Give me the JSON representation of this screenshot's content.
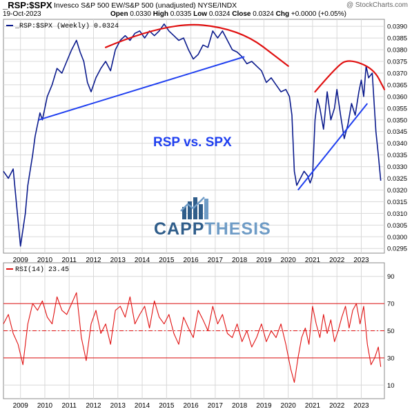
{
  "header": {
    "symbol": "_RSP:$SPX",
    "description": "Invesco S&P 500 EW/S&P 500 (unadjusted) NYSE/INDX",
    "watermark": "@ StockCharts.com",
    "date": "19-Oct-2023",
    "open_label": "Open",
    "open_value": "0.0330",
    "high_label": "High",
    "high_value": "0.0335",
    "low_label": "Low",
    "low_value": "0.0324",
    "close_label": "Close",
    "close_value": "0.0324",
    "chg_label": "Chg",
    "chg_value": "+0.0000 (+0.05%)"
  },
  "annotation": "RSP vs. SPX",
  "logo": {
    "part1": "CAPP",
    "part2": "THESIS"
  },
  "colors": {
    "price": "#0a1a8c",
    "trend": "#1f3ff0",
    "arc": "#e01010",
    "rsi": "#e01010",
    "grid": "#d8d8d8"
  },
  "chart_data": [
    {
      "type": "line",
      "legend": "_RSP:$SPX (Weekly) 0.0324",
      "x_ticks": [
        "2009",
        "2010",
        "2011",
        "2012",
        "2013",
        "2014",
        "2015",
        "2016",
        "2017",
        "2018",
        "2019",
        "2020",
        "2021",
        "2022",
        "2023"
      ],
      "y_ticks": [
        "0.0295",
        "0.0300",
        "0.0305",
        "0.0310",
        "0.0315",
        "0.0320",
        "0.0325",
        "0.0330",
        "0.0335",
        "0.0340",
        "0.0345",
        "0.0350",
        "0.0355",
        "0.0360",
        "0.0365",
        "0.0370",
        "0.0375",
        "0.0380",
        "0.0385",
        "0.0390"
      ],
      "ylim": [
        0.0293,
        0.0393
      ],
      "xlim": [
        2008.3,
        2023.95
      ],
      "series": [
        {
          "x": [
            2008.3,
            2008.5,
            2008.7,
            2008.8,
            2009.0,
            2009.1,
            2009.2,
            2009.3,
            2009.5,
            2009.6,
            2009.8,
            2009.9,
            2010.1,
            2010.3,
            2010.5,
            2010.7,
            2010.9,
            2011.1,
            2011.3,
            2011.45,
            2011.6,
            2011.75,
            2011.9,
            2012.1,
            2012.3,
            2012.5,
            2012.7,
            2012.9,
            2013.1,
            2013.3,
            2013.5,
            2013.7,
            2013.9,
            2014.1,
            2014.3,
            2014.5,
            2014.7,
            2014.9,
            2015.1,
            2015.3,
            2015.5,
            2015.7,
            2015.9,
            2016.1,
            2016.3,
            2016.5,
            2016.7,
            2016.9,
            2017.1,
            2017.3,
            2017.5,
            2017.7,
            2017.9,
            2018.1,
            2018.3,
            2018.5,
            2018.7,
            2018.9,
            2019.1,
            2019.3,
            2019.5,
            2019.7,
            2019.9,
            2020.05,
            2020.15,
            2020.25,
            2020.35,
            2020.5,
            2020.65,
            2020.8,
            2020.9,
            2021.0,
            2021.1,
            2021.2,
            2021.3,
            2021.45,
            2021.6,
            2021.75,
            2021.9,
            2022.0,
            2022.15,
            2022.3,
            2022.45,
            2022.6,
            2022.75,
            2022.9,
            2023.0,
            2023.1,
            2023.2,
            2023.3,
            2023.45,
            2023.6,
            2023.7,
            2023.8
          ],
          "y": [
            0.0328,
            0.0325,
            0.0329,
            0.0318,
            0.0296,
            0.0303,
            0.031,
            0.0322,
            0.0335,
            0.0343,
            0.0353,
            0.035,
            0.036,
            0.0365,
            0.0372,
            0.037,
            0.0375,
            0.038,
            0.0384,
            0.0379,
            0.0375,
            0.0366,
            0.0362,
            0.0368,
            0.0372,
            0.0375,
            0.0371,
            0.038,
            0.0384,
            0.0386,
            0.0384,
            0.0387,
            0.0388,
            0.0385,
            0.0388,
            0.0386,
            0.0388,
            0.0391,
            0.0388,
            0.0386,
            0.0384,
            0.0385,
            0.038,
            0.0376,
            0.0378,
            0.0382,
            0.0381,
            0.0388,
            0.0385,
            0.0388,
            0.0384,
            0.038,
            0.0379,
            0.0377,
            0.0374,
            0.0375,
            0.0373,
            0.0371,
            0.0366,
            0.0368,
            0.0365,
            0.0362,
            0.0363,
            0.036,
            0.0352,
            0.0328,
            0.0322,
            0.0325,
            0.0328,
            0.0326,
            0.0323,
            0.0326,
            0.035,
            0.0359,
            0.0355,
            0.0346,
            0.0362,
            0.035,
            0.0355,
            0.0363,
            0.0352,
            0.0342,
            0.0348,
            0.0357,
            0.0352,
            0.0362,
            0.0367,
            0.036,
            0.0373,
            0.0368,
            0.037,
            0.0345,
            0.0335,
            0.0324
          ]
        }
      ],
      "trendlines": [
        {
          "x": [
            2009.75,
            2018.2
          ],
          "y": [
            0.035,
            0.0377
          ]
        },
        {
          "x": [
            2020.4,
            2023.25
          ],
          "y": [
            0.032,
            0.0357
          ]
        }
      ],
      "arcs": [
        {
          "x": [
            2012.5,
            2015.0,
            2018.0,
            2020.0
          ],
          "y": [
            0.0381,
            0.0392,
            0.0389,
            0.0373
          ]
        },
        {
          "x": [
            2021.1,
            2022.0,
            2022.5,
            2023.5,
            2023.95
          ],
          "y": [
            0.0362,
            0.0373,
            0.0376,
            0.0372,
            0.0363
          ]
        }
      ]
    },
    {
      "type": "line",
      "legend": "RSI(14) 23.45",
      "x_ticks": [
        "2009",
        "2010",
        "2011",
        "2012",
        "2013",
        "2014",
        "2015",
        "2016",
        "2017",
        "2018",
        "2019",
        "2020",
        "2021",
        "2022",
        "2023"
      ],
      "y_ticks": [
        "10",
        "30",
        "50",
        "70",
        "90"
      ],
      "ylim": [
        0,
        100
      ],
      "xlim": [
        2008.3,
        2023.95
      ],
      "reference_lines": [
        30,
        50,
        70
      ],
      "series": [
        {
          "x": [
            2008.3,
            2008.5,
            2008.7,
            2008.9,
            2009.1,
            2009.3,
            2009.5,
            2009.7,
            2009.9,
            2010.1,
            2010.3,
            2010.5,
            2010.7,
            2010.9,
            2011.1,
            2011.3,
            2011.5,
            2011.7,
            2011.9,
            2012.1,
            2012.3,
            2012.5,
            2012.7,
            2012.9,
            2013.1,
            2013.3,
            2013.5,
            2013.7,
            2013.9,
            2014.1,
            2014.3,
            2014.5,
            2014.7,
            2014.9,
            2015.1,
            2015.3,
            2015.5,
            2015.7,
            2015.9,
            2016.1,
            2016.3,
            2016.5,
            2016.7,
            2016.9,
            2017.1,
            2017.3,
            2017.5,
            2017.7,
            2017.9,
            2018.1,
            2018.3,
            2018.5,
            2018.7,
            2018.9,
            2019.1,
            2019.3,
            2019.5,
            2019.7,
            2019.9,
            2020.1,
            2020.25,
            2020.4,
            2020.55,
            2020.7,
            2020.85,
            2021.0,
            2021.15,
            2021.3,
            2021.45,
            2021.6,
            2021.75,
            2021.9,
            2022.05,
            2022.2,
            2022.35,
            2022.5,
            2022.65,
            2022.8,
            2022.95,
            2023.1,
            2023.25,
            2023.4,
            2023.55,
            2023.7,
            2023.8
          ],
          "y": [
            55,
            62,
            48,
            40,
            25,
            55,
            70,
            65,
            72,
            60,
            55,
            75,
            65,
            62,
            70,
            78,
            45,
            28,
            55,
            65,
            48,
            55,
            40,
            65,
            68,
            60,
            75,
            55,
            62,
            68,
            52,
            72,
            60,
            55,
            62,
            48,
            40,
            60,
            52,
            45,
            65,
            58,
            50,
            68,
            55,
            62,
            48,
            45,
            55,
            42,
            50,
            38,
            45,
            55,
            42,
            50,
            45,
            55,
            40,
            22,
            12,
            30,
            45,
            52,
            40,
            68,
            55,
            45,
            62,
            48,
            58,
            42,
            50,
            60,
            68,
            52,
            65,
            70,
            55,
            68,
            40,
            25,
            30,
            38,
            23.45
          ]
        }
      ]
    }
  ]
}
